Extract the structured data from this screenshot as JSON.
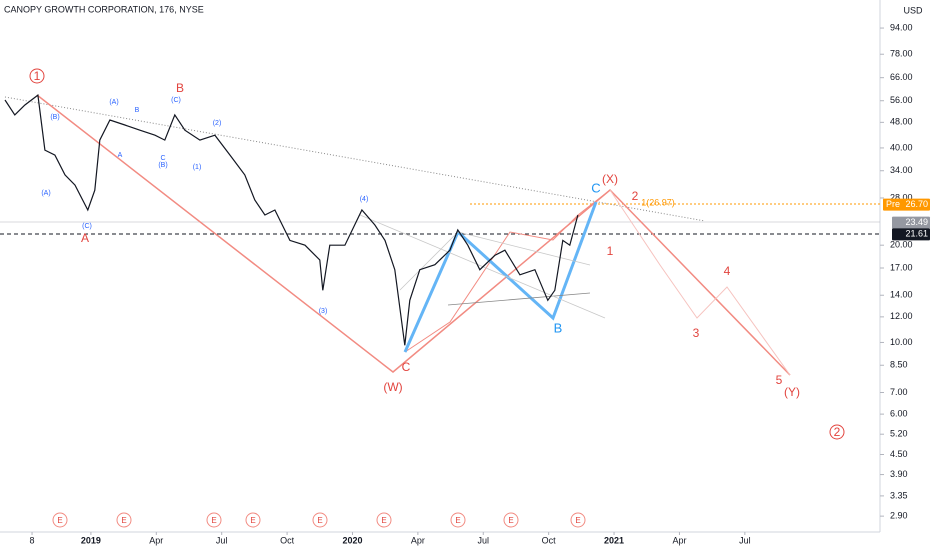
{
  "chart_data": {
    "type": "line",
    "title": "CANOPY GROWTH CORPORATION, 176, NYSE",
    "currency": "USD",
    "log_scale": true,
    "grid": false,
    "color": "#131722",
    "x": [
      -3.94,
      -3.49,
      -3.03,
      -2.43,
      -2.11,
      -1.65,
      -1.19,
      -0.73,
      -0.14,
      0.18,
      0.41,
      0.87,
      1.56,
      2.25,
      2.94,
      3.39,
      3.85,
      4.31,
      5.0,
      5.69,
      6.38,
      7.06,
      7.52,
      7.98,
      8.44,
      9.13,
      9.82,
      10.5,
      10.64,
      10.96,
      11.65,
      12.43,
      13.03,
      13.49,
      13.94,
      14.4,
      14.63,
      15.09,
      15.78,
      16.47,
      16.83,
      17.29,
      17.84,
      18.53,
      18.99,
      19.68,
      20.37,
      20.96,
      21.28,
      21.65,
      21.97,
      22.34
    ],
    "values": [
      56.3,
      50.6,
      54.3,
      58.3,
      39.4,
      38.0,
      33.0,
      30.7,
      25.7,
      29.6,
      42.3,
      48.8,
      47.1,
      45.4,
      43.8,
      42.3,
      50.6,
      45.4,
      42.3,
      43.8,
      38.0,
      33.0,
      27.6,
      24.8,
      25.7,
      20.7,
      20.0,
      18.0,
      14.5,
      20.0,
      20.0,
      25.7,
      23.1,
      20.7,
      16.8,
      9.8,
      13.5,
      16.8,
      17.4,
      19.3,
      22.3,
      20.0,
      16.8,
      18.6,
      19.3,
      16.2,
      16.8,
      13.5,
      14.5,
      20.7,
      20.0,
      24.8
    ],
    "xlim": [
      -4.17,
      36.2
    ],
    "xticks": [
      {
        "value": -2.7,
        "label": "8"
      },
      {
        "value": 0,
        "label": "2019"
      },
      {
        "value": 3,
        "label": "Apr"
      },
      {
        "value": 6,
        "label": "Jul"
      },
      {
        "value": 9,
        "label": "Oct"
      },
      {
        "value": 12,
        "label": "2020"
      },
      {
        "value": 15,
        "label": "Apr"
      },
      {
        "value": 18,
        "label": "Jul"
      },
      {
        "value": 21,
        "label": "Oct"
      },
      {
        "value": 24,
        "label": "2021"
      },
      {
        "value": 27,
        "label": "Apr"
      },
      {
        "value": 30,
        "label": "Jul"
      }
    ],
    "ylim": [
      2.59,
      114.8
    ],
    "yticks": [
      {
        "value": 2.9,
        "label": "2.90"
      },
      {
        "value": 3.35,
        "label": "3.35"
      },
      {
        "value": 3.9,
        "label": "3.90"
      },
      {
        "value": 4.5,
        "label": "4.50"
      },
      {
        "value": 5.2,
        "label": "5.20"
      },
      {
        "value": 6,
        "label": "6.00"
      },
      {
        "value": 7,
        "label": "7.00"
      },
      {
        "value": 8.5,
        "label": "8.50"
      },
      {
        "value": 10,
        "label": "10.00"
      },
      {
        "value": 12,
        "label": "12.00"
      },
      {
        "value": 14,
        "label": "14.00"
      },
      {
        "value": 17,
        "label": "17.00"
      },
      {
        "value": 20,
        "label": "20.00"
      },
      {
        "value": 28,
        "label": "28.00"
      },
      {
        "value": 34,
        "label": "34.00"
      },
      {
        "value": 40,
        "label": "40.00"
      },
      {
        "value": 48,
        "label": "48.00"
      },
      {
        "value": 56,
        "label": "56.00"
      },
      {
        "value": 66,
        "label": "66.00"
      },
      {
        "value": 78,
        "label": "78.00"
      },
      {
        "value": 94,
        "label": "94.00"
      }
    ],
    "markers": [
      {
        "name": "Pre",
        "value": 26.7,
        "label": "26.70",
        "color": "#ff9800"
      },
      {
        "value": 23.49,
        "label": "23.49",
        "color": "#9598a1"
      },
      {
        "value": 21.61,
        "label": "21.61",
        "color": "#131722"
      }
    ],
    "annotations": [
      "1",
      "A",
      "B",
      "C",
      "(W)",
      "(X)",
      "2",
      "1",
      "3",
      "4",
      "5",
      "(Y)",
      "2",
      "C",
      "B",
      "(A)",
      "(B)",
      "(C)",
      "(A)",
      "B",
      "(C)",
      "A",
      "C",
      "(B)",
      "(1)",
      "(2)",
      "(3)",
      "(4)",
      "1(26.97)"
    ],
    "events": [
      "E",
      "E",
      "E",
      "E",
      "E",
      "E",
      "E",
      "E",
      "E"
    ]
  }
}
